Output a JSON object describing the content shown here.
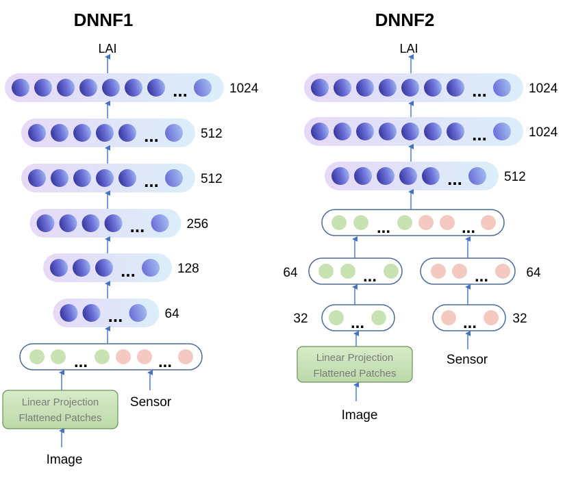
{
  "colors": {
    "arrow": "#4472c4",
    "hidden_pill_left": "#e6d9f7",
    "hidden_pill_right": "#dbeef9",
    "hidden_node_light": "#a7c4f2",
    "hidden_node_mid": "#6f74da",
    "hidden_node_dark": "#3e3fa6",
    "green_node": "#c9e2b3",
    "pink_node": "#f4c9c1",
    "input_pill_border": "#4a6a9c",
    "box_fill_top": "#d7ebc8",
    "box_fill_bottom": "#bcd9a8",
    "box_border": "#6b8f58",
    "box_text": "#7a7a7a"
  },
  "dnnf1": {
    "title": "DNNF1",
    "output": "LAI",
    "ellipsis": "...",
    "layers": [
      {
        "units": "1024",
        "colored_nodes": 7
      },
      {
        "units": "512",
        "colored_nodes": 5
      },
      {
        "units": "512",
        "colored_nodes": 5
      },
      {
        "units": "256",
        "colored_nodes": 4
      },
      {
        "units": "128",
        "colored_nodes": 3
      },
      {
        "units": "64",
        "colored_nodes": 2
      }
    ],
    "projection_lines": [
      "Linear Projection",
      "Flattened Patches"
    ],
    "image_label": "Image",
    "sensor_label": "Sensor"
  },
  "dnnf2": {
    "title": "DNNF2",
    "output": "LAI",
    "ellipsis": "...",
    "layers": [
      {
        "units": "1024",
        "colored_nodes": 7
      },
      {
        "units": "1024",
        "colored_nodes": 7
      },
      {
        "units": "512",
        "colored_nodes": 5
      }
    ],
    "image_branch": [
      {
        "units": "64"
      },
      {
        "units": "32"
      }
    ],
    "sensor_branch": [
      {
        "units": "64"
      },
      {
        "units": "32"
      }
    ],
    "projection_lines": [
      "Linear Projection",
      "Flattened Patches"
    ],
    "image_label": "Image",
    "sensor_label": "Sensor"
  }
}
